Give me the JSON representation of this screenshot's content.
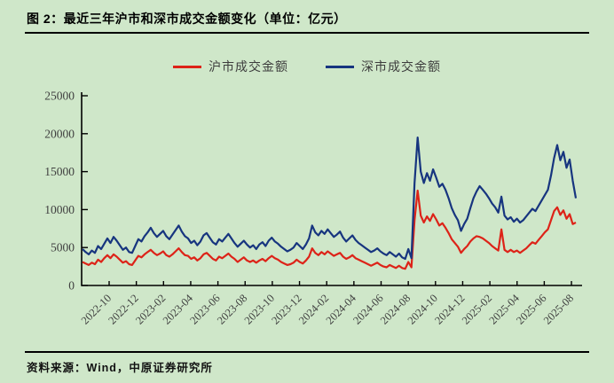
{
  "page": {
    "title": "图 2：最近三年沪市和深市成交金额变化（单位：亿元）",
    "source": "资料来源：Wind，中原证券研究所",
    "background_color": "#cfe7c9",
    "rule_color": "#000000"
  },
  "legend": [
    {
      "label": "沪市成交金额",
      "color": "#dd2318"
    },
    {
      "label": "深市成交金额",
      "color": "#17357f"
    }
  ],
  "chart_data": {
    "type": "line",
    "title": "最近三年沪市和深市成交金额变化",
    "unit": "亿元",
    "xlabel": "",
    "ylabel": "",
    "ylim": [
      0,
      25000
    ],
    "y_ticks": [
      0,
      5000,
      10000,
      15000,
      20000,
      25000
    ],
    "grid": false,
    "legend_position": "top",
    "axis_color": "#000000",
    "tick_label_color": "#3f3f3f",
    "x_tick_labels": [
      "2022-10",
      "2022-12",
      "2023-02",
      "2023-04",
      "2023-06",
      "2023-08",
      "2023-10",
      "2023-12",
      "2024-02",
      "2024-04",
      "2024-06",
      "2024-08",
      "2024-10",
      "2024-12",
      "2025-02",
      "2025-04",
      "2025-06",
      "2025-08"
    ],
    "x_start": "2022-09",
    "x_end": "2025-09",
    "sampling": "weekly",
    "series": [
      {
        "name": "沪市成交金额",
        "color": "#dd2318",
        "values": [
          3100,
          2900,
          2700,
          3000,
          2800,
          3400,
          3100,
          3600,
          4000,
          3600,
          4100,
          3800,
          3400,
          3000,
          3200,
          2800,
          2700,
          3300,
          3900,
          3700,
          4100,
          4400,
          4700,
          4300,
          4000,
          4200,
          4500,
          4000,
          3800,
          4100,
          4500,
          4900,
          4400,
          4000,
          3900,
          3500,
          3700,
          3300,
          3600,
          4100,
          4300,
          3900,
          3500,
          3300,
          3800,
          3600,
          3900,
          4200,
          3800,
          3500,
          3100,
          3400,
          3700,
          3300,
          3100,
          3300,
          3000,
          3300,
          3500,
          3200,
          3600,
          3900,
          3600,
          3400,
          3100,
          2900,
          2700,
          2800,
          3000,
          3400,
          3100,
          2900,
          3300,
          3800,
          4900,
          4300,
          4000,
          4400,
          4100,
          4500,
          4200,
          3900,
          4100,
          4300,
          3800,
          3500,
          3700,
          4000,
          3600,
          3400,
          3200,
          3000,
          2800,
          2600,
          2800,
          3000,
          2700,
          2500,
          2400,
          2700,
          2500,
          2300,
          2600,
          2300,
          2200,
          3100,
          2400,
          8600,
          12500,
          9200,
          8300,
          9100,
          8500,
          9400,
          8700,
          7900,
          8200,
          7600,
          6900,
          6100,
          5600,
          5100,
          4300,
          4800,
          5200,
          5800,
          6200,
          6500,
          6400,
          6200,
          5900,
          5600,
          5200,
          4900,
          4600,
          7400,
          4700,
          4400,
          4700,
          4400,
          4600,
          4300,
          4600,
          4900,
          5300,
          5700,
          5500,
          6000,
          6500,
          7000,
          7400,
          8600,
          9800,
          10300,
          9300,
          9900,
          8800,
          9400,
          8100,
          8300
        ]
      },
      {
        "name": "深市成交金额",
        "color": "#17357f",
        "values": [
          4800,
          4400,
          4100,
          4600,
          4300,
          5200,
          4800,
          5500,
          6200,
          5600,
          6400,
          5900,
          5300,
          4700,
          5000,
          4400,
          4300,
          5200,
          6100,
          5800,
          6500,
          7000,
          7600,
          6900,
          6400,
          6800,
          7200,
          6500,
          6100,
          6700,
          7300,
          7900,
          7100,
          6500,
          6200,
          5600,
          5900,
          5300,
          5800,
          6600,
          6900,
          6300,
          5700,
          5400,
          6100,
          5800,
          6300,
          6800,
          6200,
          5600,
          5100,
          5500,
          5900,
          5400,
          5000,
          5300,
          4800,
          5400,
          5700,
          5200,
          5900,
          6300,
          5800,
          5500,
          5100,
          4800,
          4500,
          4700,
          5000,
          5600,
          5200,
          4800,
          5400,
          6200,
          7900,
          7000,
          6600,
          7200,
          6800,
          7400,
          6900,
          6400,
          6700,
          7100,
          6300,
          5800,
          6200,
          6600,
          6000,
          5600,
          5300,
          5000,
          4700,
          4400,
          4600,
          4900,
          4500,
          4200,
          4000,
          4400,
          4100,
          3800,
          4200,
          3700,
          3500,
          4800,
          3600,
          13500,
          19500,
          15000,
          13500,
          14800,
          13800,
          15300,
          14200,
          13000,
          13400,
          12600,
          11500,
          10200,
          9300,
          8600,
          7200,
          8100,
          8800,
          10200,
          11500,
          12400,
          13100,
          12600,
          12100,
          11500,
          10800,
          10300,
          9600,
          11700,
          9200,
          8700,
          9000,
          8400,
          8800,
          8300,
          8600,
          9100,
          9600,
          10100,
          9800,
          10500,
          11200,
          11900,
          12600,
          14500,
          16800,
          18500,
          16500,
          17600,
          15500,
          16600,
          13800,
          11500
        ]
      }
    ]
  }
}
